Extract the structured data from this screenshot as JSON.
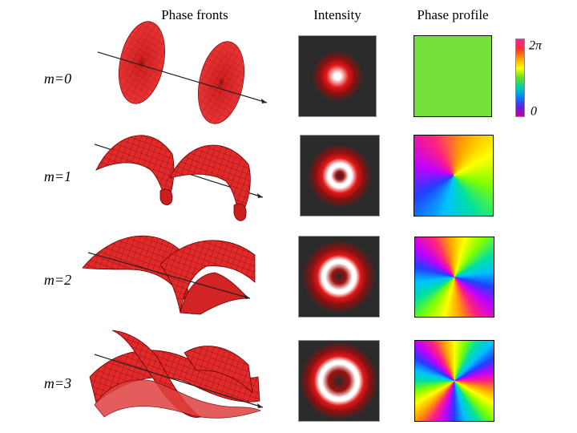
{
  "headers": [
    "Phase fronts",
    "Intensity",
    "Phase profile"
  ],
  "rows": [
    {
      "label": "m=0"
    },
    {
      "label": "m=1"
    },
    {
      "label": "m=2"
    },
    {
      "label": "m=3"
    }
  ],
  "colorbar": {
    "top": "2π",
    "bottom": "0"
  }
}
